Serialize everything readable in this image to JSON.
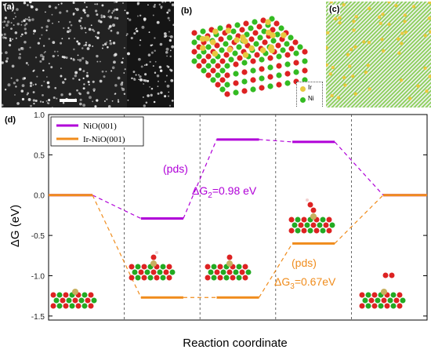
{
  "panels": {
    "a": {
      "label": "(a)"
    },
    "b": {
      "label": "(b)",
      "legend": [
        {
          "symbol": "Ir",
          "color": "#e8c840"
        },
        {
          "symbol": "Ni",
          "color": "#33bb22"
        }
      ]
    },
    "c": {
      "label": "(c)"
    },
    "d": {
      "label": "(d)"
    }
  },
  "chart_data": {
    "type": "line",
    "title": "",
    "xlabel": "Reaction coordinate",
    "ylabel": "ΔG (eV)",
    "ylim": [
      -1.55,
      1.0
    ],
    "yticks": [
      "1.0",
      "0.5",
      "0.0",
      "-0.5",
      "-1.0",
      "-1.5"
    ],
    "ytick_values": [
      1.0,
      0.5,
      0.0,
      -0.5,
      -1.0,
      -1.5
    ],
    "steps": 5,
    "legend_position": "top-left",
    "series": [
      {
        "name": "NiO(001)",
        "color": "#b000d8",
        "values": [
          0.0,
          -0.29,
          0.69,
          0.66,
          0.0
        ]
      },
      {
        "name": "Ir-NiO(001)",
        "color": "#f08c1c",
        "values": [
          0.0,
          -1.27,
          -1.27,
          -0.6,
          0.0
        ]
      }
    ],
    "annotations": [
      {
        "text": "(pds)",
        "color": "#b000d8"
      },
      {
        "text_main": "ΔG",
        "sub": "2",
        "rest": "=0.98 eV",
        "color": "#b000d8"
      },
      {
        "text": "(pds)",
        "color": "#f08c1c"
      },
      {
        "text_main": "ΔG",
        "sub": "3",
        "rest": "=0.67eV",
        "color": "#f08c1c"
      }
    ]
  }
}
